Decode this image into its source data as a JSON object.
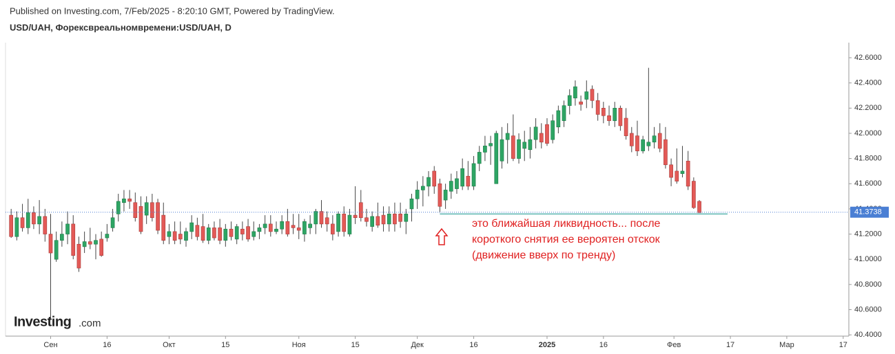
{
  "header": {
    "published": "Published on Investing.com, 7/Feb/2025 - 8:20:10 GMT, Powered by TradingView.",
    "symbol": "USD/UAH, Форексвреальномвремени:USD/UAH, D"
  },
  "watermark": {
    "brand": "Investing",
    "suffix": ".com"
  },
  "chart_data": {
    "type": "candlestick",
    "up_color": "#2ea564",
    "down_color": "#e35a57",
    "xlim": [
      -1,
      148.5
    ],
    "ylim": [
      40.39,
      42.72
    ],
    "xticks": [
      {
        "value": 7,
        "label": "Сен"
      },
      {
        "value": 17,
        "label": "16"
      },
      {
        "value": 28,
        "label": "Окт"
      },
      {
        "value": 38,
        "label": "15"
      },
      {
        "value": 51,
        "label": "Ноя"
      },
      {
        "value": 61,
        "label": "15"
      },
      {
        "value": 72,
        "label": "Дек"
      },
      {
        "value": 82,
        "label": "16"
      },
      {
        "value": 95,
        "label": "2025"
      },
      {
        "value": 105,
        "label": "16"
      },
      {
        "value": 117.5,
        "label": "Фев"
      },
      {
        "value": 127.5,
        "label": "17"
      },
      {
        "value": 137.5,
        "label": "Мар"
      },
      {
        "value": 147.5,
        "label": "17"
      }
    ],
    "yticks": [
      {
        "value": 40.4,
        "label": "40.4000"
      },
      {
        "value": 40.6,
        "label": "40.6000"
      },
      {
        "value": 40.8,
        "label": "40.8000"
      },
      {
        "value": 41.0,
        "label": "41.0000"
      },
      {
        "value": 41.2,
        "label": "41.2000"
      },
      {
        "value": 41.4,
        "label": "41.4000"
      },
      {
        "value": 41.6,
        "label": "41.6000"
      },
      {
        "value": 41.8,
        "label": "41.8000"
      },
      {
        "value": 42.0,
        "label": "42.0000"
      },
      {
        "value": 42.2,
        "label": "42.2000"
      },
      {
        "value": 42.4,
        "label": "42.4000"
      },
      {
        "value": 42.6,
        "label": "42.6000"
      }
    ],
    "last_price": 41.3738,
    "annotation_line": {
      "y": 41.36,
      "x": [
        76,
        127
      ]
    },
    "annotation": [
      "это ближайшая ликвидность... после",
      "короткого снятия ее вероятен отскок",
      "(движение вверх по тренду)"
    ],
    "ohlc": [
      [
        41.35,
        41.4,
        41.17,
        41.18
      ],
      [
        41.18,
        41.38,
        41.15,
        41.33
      ],
      [
        41.33,
        41.44,
        41.22,
        41.25
      ],
      [
        41.25,
        41.48,
        41.2,
        41.37
      ],
      [
        41.37,
        41.42,
        41.24,
        41.28
      ],
      [
        41.28,
        41.47,
        41.2,
        41.34
      ],
      [
        41.34,
        41.4,
        41.14,
        41.2
      ],
      [
        41.2,
        41.36,
        40.52,
        41.05
      ],
      [
        41.0,
        41.22,
        40.98,
        41.15
      ],
      [
        41.15,
        41.3,
        41.1,
        41.2
      ],
      [
        41.2,
        41.38,
        41.12,
        41.28
      ],
      [
        41.28,
        41.35,
        41.0,
        41.03
      ],
      [
        41.12,
        41.18,
        40.9,
        40.93
      ],
      [
        41.1,
        41.22,
        41.05,
        41.14
      ],
      [
        41.14,
        41.25,
        41.08,
        41.12
      ],
      [
        41.12,
        41.2,
        41.0,
        41.15
      ],
      [
        41.16,
        41.22,
        41.02,
        41.03
      ],
      [
        41.17,
        41.28,
        41.14,
        41.2
      ],
      [
        41.25,
        41.4,
        41.22,
        41.33
      ],
      [
        41.36,
        41.52,
        41.3,
        41.46
      ],
      [
        41.45,
        41.55,
        41.38,
        41.48
      ],
      [
        41.48,
        41.55,
        41.4,
        41.46
      ],
      [
        41.45,
        41.53,
        41.3,
        41.33
      ],
      [
        41.42,
        41.5,
        41.2,
        41.22
      ],
      [
        41.35,
        41.5,
        41.28,
        41.45
      ],
      [
        41.45,
        41.52,
        41.3,
        41.33
      ],
      [
        41.45,
        41.48,
        41.2,
        41.23
      ],
      [
        41.35,
        41.45,
        41.12,
        41.15
      ],
      [
        41.18,
        41.28,
        41.12,
        41.22
      ],
      [
        41.22,
        41.3,
        41.12,
        41.15
      ],
      [
        41.2,
        41.3,
        41.12,
        41.16
      ],
      [
        41.15,
        41.25,
        41.1,
        41.22
      ],
      [
        41.22,
        41.35,
        41.16,
        41.29
      ],
      [
        41.27,
        41.33,
        41.15,
        41.18
      ],
      [
        41.26,
        41.36,
        41.13,
        41.15
      ],
      [
        41.15,
        41.28,
        41.12,
        41.25
      ],
      [
        41.25,
        41.3,
        41.15,
        41.17
      ],
      [
        41.25,
        41.32,
        41.12,
        41.15
      ],
      [
        41.15,
        41.28,
        41.1,
        41.24
      ],
      [
        41.24,
        41.3,
        41.15,
        41.18
      ],
      [
        41.16,
        41.28,
        41.12,
        41.26
      ],
      [
        41.24,
        41.3,
        41.15,
        41.2
      ],
      [
        41.26,
        41.32,
        41.14,
        41.16
      ],
      [
        41.18,
        41.3,
        41.15,
        41.22
      ],
      [
        41.22,
        41.28,
        41.16,
        41.25
      ],
      [
        41.25,
        41.35,
        41.2,
        41.28
      ],
      [
        41.28,
        41.35,
        41.18,
        41.22
      ],
      [
        41.22,
        41.3,
        41.2,
        41.24
      ],
      [
        41.24,
        41.35,
        41.2,
        41.3
      ],
      [
        41.3,
        41.4,
        41.18,
        41.2
      ],
      [
        41.27,
        41.36,
        41.2,
        41.25
      ],
      [
        41.25,
        41.36,
        41.16,
        41.23
      ],
      [
        41.2,
        41.32,
        41.14,
        41.3
      ],
      [
        41.25,
        41.35,
        41.2,
        41.28
      ],
      [
        41.28,
        41.4,
        41.2,
        41.38
      ],
      [
        41.38,
        41.47,
        41.25,
        41.28
      ],
      [
        41.33,
        41.38,
        41.22,
        41.28
      ],
      [
        41.28,
        41.35,
        41.15,
        41.2
      ],
      [
        41.22,
        41.38,
        41.18,
        41.36
      ],
      [
        41.36,
        41.42,
        41.18,
        41.22
      ],
      [
        41.2,
        41.4,
        41.18,
        41.35
      ],
      [
        41.35,
        41.58,
        41.28,
        41.33
      ],
      [
        41.45,
        41.55,
        41.3,
        41.33
      ],
      [
        41.33,
        41.4,
        41.26,
        41.3
      ],
      [
        41.26,
        41.38,
        41.22,
        41.34
      ],
      [
        41.34,
        41.45,
        41.25,
        41.27
      ],
      [
        41.35,
        41.42,
        41.22,
        41.28
      ],
      [
        41.28,
        41.42,
        41.22,
        41.36
      ],
      [
        41.36,
        41.45,
        41.22,
        41.28
      ],
      [
        41.36,
        41.45,
        41.25,
        41.3
      ],
      [
        41.3,
        41.4,
        41.2,
        41.36
      ],
      [
        41.4,
        41.52,
        41.3,
        41.48
      ],
      [
        41.48,
        41.62,
        41.4,
        41.55
      ],
      [
        41.55,
        41.66,
        41.42,
        41.58
      ],
      [
        41.58,
        41.7,
        41.5,
        41.65
      ],
      [
        41.7,
        41.74,
        41.52,
        41.58
      ],
      [
        41.6,
        41.64,
        41.37,
        41.42
      ],
      [
        41.47,
        41.6,
        41.4,
        41.55
      ],
      [
        41.54,
        41.68,
        41.48,
        41.62
      ],
      [
        41.56,
        41.7,
        41.52,
        41.64
      ],
      [
        41.58,
        41.8,
        41.55,
        41.72
      ],
      [
        41.66,
        41.78,
        41.55,
        41.58
      ],
      [
        41.58,
        41.82,
        41.55,
        41.76
      ],
      [
        41.76,
        41.9,
        41.7,
        41.85
      ],
      [
        41.85,
        41.98,
        41.78,
        41.9
      ],
      [
        41.9,
        41.98,
        41.75,
        41.92
      ],
      [
        41.6,
        42.02,
        41.6,
        42.0
      ],
      [
        41.78,
        42.05,
        41.72,
        41.95
      ],
      [
        41.95,
        42.08,
        41.76,
        42.0
      ],
      [
        41.98,
        42.15,
        41.78,
        41.8
      ],
      [
        41.8,
        42.0,
        41.76,
        41.95
      ],
      [
        41.88,
        42.02,
        41.78,
        41.93
      ],
      [
        41.87,
        42.05,
        41.8,
        41.95
      ],
      [
        41.95,
        42.12,
        41.88,
        42.05
      ],
      [
        42.0,
        42.08,
        41.88,
        41.93
      ],
      [
        42.07,
        42.12,
        41.9,
        41.92
      ],
      [
        41.95,
        42.15,
        41.92,
        42.1
      ],
      [
        42.05,
        42.22,
        42.0,
        42.18
      ],
      [
        42.1,
        42.26,
        42.05,
        42.22
      ],
      [
        42.22,
        42.35,
        42.15,
        42.3
      ],
      [
        42.28,
        42.42,
        42.22,
        42.37
      ],
      [
        42.25,
        42.3,
        42.18,
        42.23
      ],
      [
        42.27,
        42.42,
        42.2,
        42.33
      ],
      [
        42.35,
        42.38,
        42.2,
        42.26
      ],
      [
        42.26,
        42.32,
        42.1,
        42.15
      ],
      [
        42.2,
        42.25,
        42.08,
        42.14
      ],
      [
        42.14,
        42.22,
        42.06,
        42.1
      ],
      [
        42.1,
        42.25,
        42.05,
        42.2
      ],
      [
        42.2,
        42.22,
        42.02,
        42.06
      ],
      [
        42.12,
        42.2,
        41.95,
        41.98
      ],
      [
        42.0,
        42.05,
        41.85,
        41.9
      ],
      [
        41.98,
        42.1,
        41.82,
        41.86
      ],
      [
        41.86,
        41.98,
        41.84,
        41.95
      ],
      [
        41.9,
        42.52,
        41.86,
        41.93
      ],
      [
        41.93,
        42.05,
        41.88,
        41.98
      ],
      [
        42.0,
        42.08,
        41.85,
        41.88
      ],
      [
        41.95,
        42.05,
        41.72,
        41.75
      ],
      [
        41.75,
        41.8,
        41.58,
        41.65
      ],
      [
        41.7,
        41.88,
        41.6,
        41.62
      ],
      [
        41.68,
        41.9,
        41.65,
        41.7
      ],
      [
        41.78,
        41.86,
        41.55,
        41.58
      ],
      [
        41.62,
        41.65,
        41.4,
        41.41
      ],
      [
        41.46,
        41.47,
        41.37,
        41.37
      ]
    ]
  }
}
